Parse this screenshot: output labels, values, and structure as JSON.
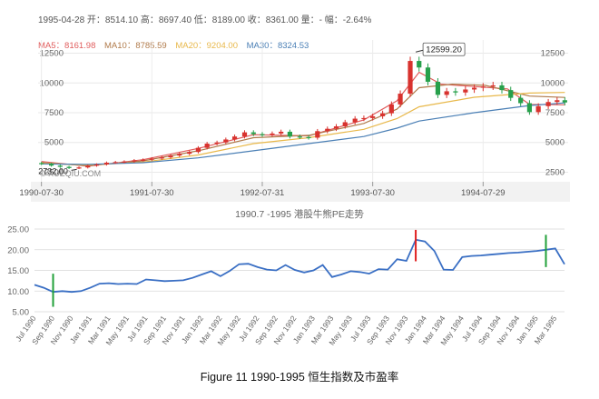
{
  "top": {
    "info": {
      "date": "1995-04-28",
      "text": " 开：8514.10 高：8697.40 低：8189.00 收：8361.00 量：- 幅：-2.64%"
    },
    "ma": [
      {
        "label": "MA5：8161.98",
        "color": "#e05c5c"
      },
      {
        "label": "MA10：8785.59",
        "color": "#b07a4a"
      },
      {
        "label": "MA20：9204.00",
        "color": "#e8b84a"
      },
      {
        "label": "MA30：8324.53",
        "color": "#4a7fb5"
      }
    ],
    "watermark": "© XUEQIU.COM",
    "max_label": "12599.20",
    "min_label": "2732.00",
    "up_color": "#d8322e",
    "down_color": "#27a04b"
  },
  "chart_data": [
    {
      "type": "candlestick",
      "title": "",
      "ylim": [
        2000,
        13000
      ],
      "yticks": [
        2500,
        5000,
        7500,
        10000,
        12500
      ],
      "ytick_labels": [
        "2500",
        "5000",
        "7500",
        "10000",
        "12500"
      ],
      "xtick_labels": [
        "1990-07-30",
        "1991-07-30",
        "1992-07-31",
        "1993-07-30",
        "1994-07-29"
      ],
      "x_range": [
        1990.55,
        1995.35
      ],
      "close": [
        [
          1990.58,
          3200
        ],
        [
          1990.67,
          3050
        ],
        [
          1990.75,
          2950
        ],
        [
          1990.83,
          2850
        ],
        [
          1990.92,
          2900
        ],
        [
          1991.0,
          3050
        ],
        [
          1991.08,
          3150
        ],
        [
          1991.17,
          3300
        ],
        [
          1991.25,
          3350
        ],
        [
          1991.33,
          3400
        ],
        [
          1991.42,
          3500
        ],
        [
          1991.5,
          3550
        ],
        [
          1991.58,
          3650
        ],
        [
          1991.67,
          3750
        ],
        [
          1991.75,
          3900
        ],
        [
          1991.83,
          4050
        ],
        [
          1991.92,
          4200
        ],
        [
          1992.0,
          4550
        ],
        [
          1992.08,
          4900
        ],
        [
          1992.17,
          5000
        ],
        [
          1992.25,
          5250
        ],
        [
          1992.33,
          5500
        ],
        [
          1992.42,
          5850
        ],
        [
          1992.5,
          5700
        ],
        [
          1992.58,
          5650
        ],
        [
          1992.67,
          5750
        ],
        [
          1992.75,
          5900
        ],
        [
          1992.83,
          5500
        ],
        [
          1992.92,
          5450
        ],
        [
          1993.0,
          5400
        ],
        [
          1993.08,
          5950
        ],
        [
          1993.17,
          6150
        ],
        [
          1993.25,
          6350
        ],
        [
          1993.33,
          6700
        ],
        [
          1993.42,
          7000
        ],
        [
          1993.5,
          7050
        ],
        [
          1993.58,
          7200
        ],
        [
          1993.67,
          7450
        ],
        [
          1993.75,
          8200
        ],
        [
          1993.83,
          9100
        ],
        [
          1993.92,
          11850
        ],
        [
          1994.0,
          11300
        ],
        [
          1994.08,
          10100
        ],
        [
          1994.17,
          9000
        ],
        [
          1994.25,
          9300
        ],
        [
          1994.33,
          9200
        ],
        [
          1994.42,
          9450
        ],
        [
          1994.5,
          9600
        ],
        [
          1994.58,
          9700
        ],
        [
          1994.67,
          9800
        ],
        [
          1994.75,
          9400
        ],
        [
          1994.83,
          8750
        ],
        [
          1994.92,
          8300
        ],
        [
          1995.0,
          7550
        ],
        [
          1995.08,
          8050
        ],
        [
          1995.17,
          8400
        ],
        [
          1995.25,
          8550
        ],
        [
          1995.32,
          8361
        ]
      ],
      "ma_series": [
        {
          "name": "MA5",
          "values": [
            [
              1990.58,
              3400
            ],
            [
              1991.0,
              3000
            ],
            [
              1991.5,
              3550
            ],
            [
              1992.0,
              4500
            ],
            [
              1992.5,
              5650
            ],
            [
              1993.0,
              5550
            ],
            [
              1993.5,
              6900
            ],
            [
              1993.8,
              8500
            ],
            [
              1994.0,
              10900
            ],
            [
              1994.2,
              9900
            ],
            [
              1994.5,
              9700
            ],
            [
              1994.8,
              9500
            ],
            [
              1995.0,
              8200
            ],
            [
              1995.32,
              8162
            ]
          ]
        },
        {
          "name": "MA10",
          "values": [
            [
              1990.58,
              3300
            ],
            [
              1991.0,
              3050
            ],
            [
              1991.5,
              3450
            ],
            [
              1992.0,
              4300
            ],
            [
              1992.5,
              5400
            ],
            [
              1993.0,
              5600
            ],
            [
              1993.5,
              6600
            ],
            [
              1993.8,
              7800
            ],
            [
              1994.0,
              9600
            ],
            [
              1994.3,
              9900
            ],
            [
              1994.6,
              9800
            ],
            [
              1995.0,
              8900
            ],
            [
              1995.32,
              8786
            ]
          ]
        },
        {
          "name": "MA20",
          "values": [
            [
              1990.58,
              3250
            ],
            [
              1991.0,
              3100
            ],
            [
              1991.5,
              3350
            ],
            [
              1992.0,
              3950
            ],
            [
              1992.5,
              4900
            ],
            [
              1993.0,
              5400
            ],
            [
              1993.5,
              6100
            ],
            [
              1993.8,
              7000
            ],
            [
              1994.0,
              8000
            ],
            [
              1994.5,
              8800
            ],
            [
              1995.0,
              9150
            ],
            [
              1995.32,
              9204
            ]
          ]
        },
        {
          "name": "MA30",
          "values": [
            [
              1990.58,
              3200
            ],
            [
              1991.0,
              3150
            ],
            [
              1991.5,
              3300
            ],
            [
              1992.0,
              3700
            ],
            [
              1992.5,
              4300
            ],
            [
              1993.0,
              4900
            ],
            [
              1993.5,
              5500
            ],
            [
              1993.8,
              6200
            ],
            [
              1994.0,
              6800
            ],
            [
              1994.5,
              7500
            ],
            [
              1995.0,
              8100
            ],
            [
              1995.32,
              8325
            ]
          ]
        }
      ],
      "max": {
        "x": 1993.97,
        "y": 12599.2
      },
      "min": {
        "x": 1990.9,
        "y": 2732.0
      }
    },
    {
      "type": "line",
      "title": "1990.7 -1995 港股牛熊PE走势",
      "ylim": [
        5,
        25
      ],
      "yticks": [
        5,
        10,
        15,
        20,
        25
      ],
      "ytick_labels": [
        "5.00",
        "10.00",
        "15.00",
        "20.00",
        "25.00"
      ],
      "xtick_labels": [
        "Jul 1990",
        "Sep 1990",
        "Nov 1990",
        "Jan 1991",
        "Mar 1991",
        "May 1991",
        "Jul 1991",
        "Sep 1991",
        "Nov 1991",
        "Jan 1992",
        "Mar 1992",
        "May 1992",
        "Jul 1992",
        "Sep 1992",
        "Nov 1992",
        "Jan 1993",
        "Mar 1993",
        "May 1993",
        "Jul 1993",
        "Sep 1993",
        "Nov 1993",
        "Jan 1994",
        "Mar 1994",
        "May 1994",
        "Jul 1994",
        "Sep 1994",
        "Nov 1994",
        "Jan 1995",
        "Mar 1995"
      ],
      "x": [
        "Jul 1990",
        "Aug 1990",
        "Sep 1990",
        "Oct 1990",
        "Nov 1990",
        "Dec 1990",
        "Jan 1991",
        "Feb 1991",
        "Mar 1991",
        "Apr 1991",
        "May 1991",
        "Jun 1991",
        "Jul 1991",
        "Aug 1991",
        "Sep 1991",
        "Oct 1991",
        "Nov 1991",
        "Dec 1991",
        "Jan 1992",
        "Feb 1992",
        "Mar 1992",
        "Apr 1992",
        "May 1992",
        "Jun 1992",
        "Jul 1992",
        "Aug 1992",
        "Sep 1992",
        "Oct 1992",
        "Nov 1992",
        "Dec 1992",
        "Jan 1993",
        "Feb 1993",
        "Mar 1993",
        "Apr 1993",
        "May 1993",
        "Jun 1993",
        "Jul 1993",
        "Aug 1993",
        "Sep 1993",
        "Oct 1993",
        "Nov 1993",
        "Dec 1993",
        "Jan 1994",
        "Feb 1994",
        "Mar 1994",
        "Apr 1994",
        "May 1994",
        "Jun 1994",
        "Jul 1994",
        "Aug 1994",
        "Sep 1994",
        "Oct 1994",
        "Nov 1994",
        "Dec 1994",
        "Jan 1995",
        "Feb 1995",
        "Mar 1995",
        "Apr 1995"
      ],
      "values": [
        11.5,
        10.8,
        9.8,
        10.0,
        9.8,
        10.0,
        10.8,
        11.8,
        11.9,
        11.7,
        11.8,
        11.7,
        12.8,
        12.6,
        12.4,
        12.5,
        12.6,
        13.2,
        14.0,
        14.8,
        13.6,
        14.9,
        16.5,
        16.6,
        15.8,
        15.2,
        15.0,
        16.3,
        15.1,
        14.5,
        15.0,
        16.3,
        13.4,
        14.0,
        14.8,
        14.6,
        14.2,
        15.3,
        15.2,
        17.7,
        17.3,
        22.4,
        22.0,
        19.7,
        15.2,
        15.1,
        18.2,
        18.5,
        18.6,
        18.8,
        19.0,
        19.2,
        19.3,
        19.5,
        19.7,
        20.0,
        20.3,
        16.5
      ],
      "markers": [
        {
          "x": "Sep 1990",
          "low": 6.2,
          "high": 14.2,
          "color": "#22a03a"
        },
        {
          "x": "Dec 1993",
          "low": 17.2,
          "high": 24.8,
          "color": "#e02020"
        },
        {
          "x": "Feb 1995",
          "low": 15.8,
          "high": 23.6,
          "color": "#22a03a"
        }
      ],
      "line_color": "#3a6fc4"
    }
  ],
  "caption": "Figure 11 1990-1995  恒生指数及市盈率"
}
